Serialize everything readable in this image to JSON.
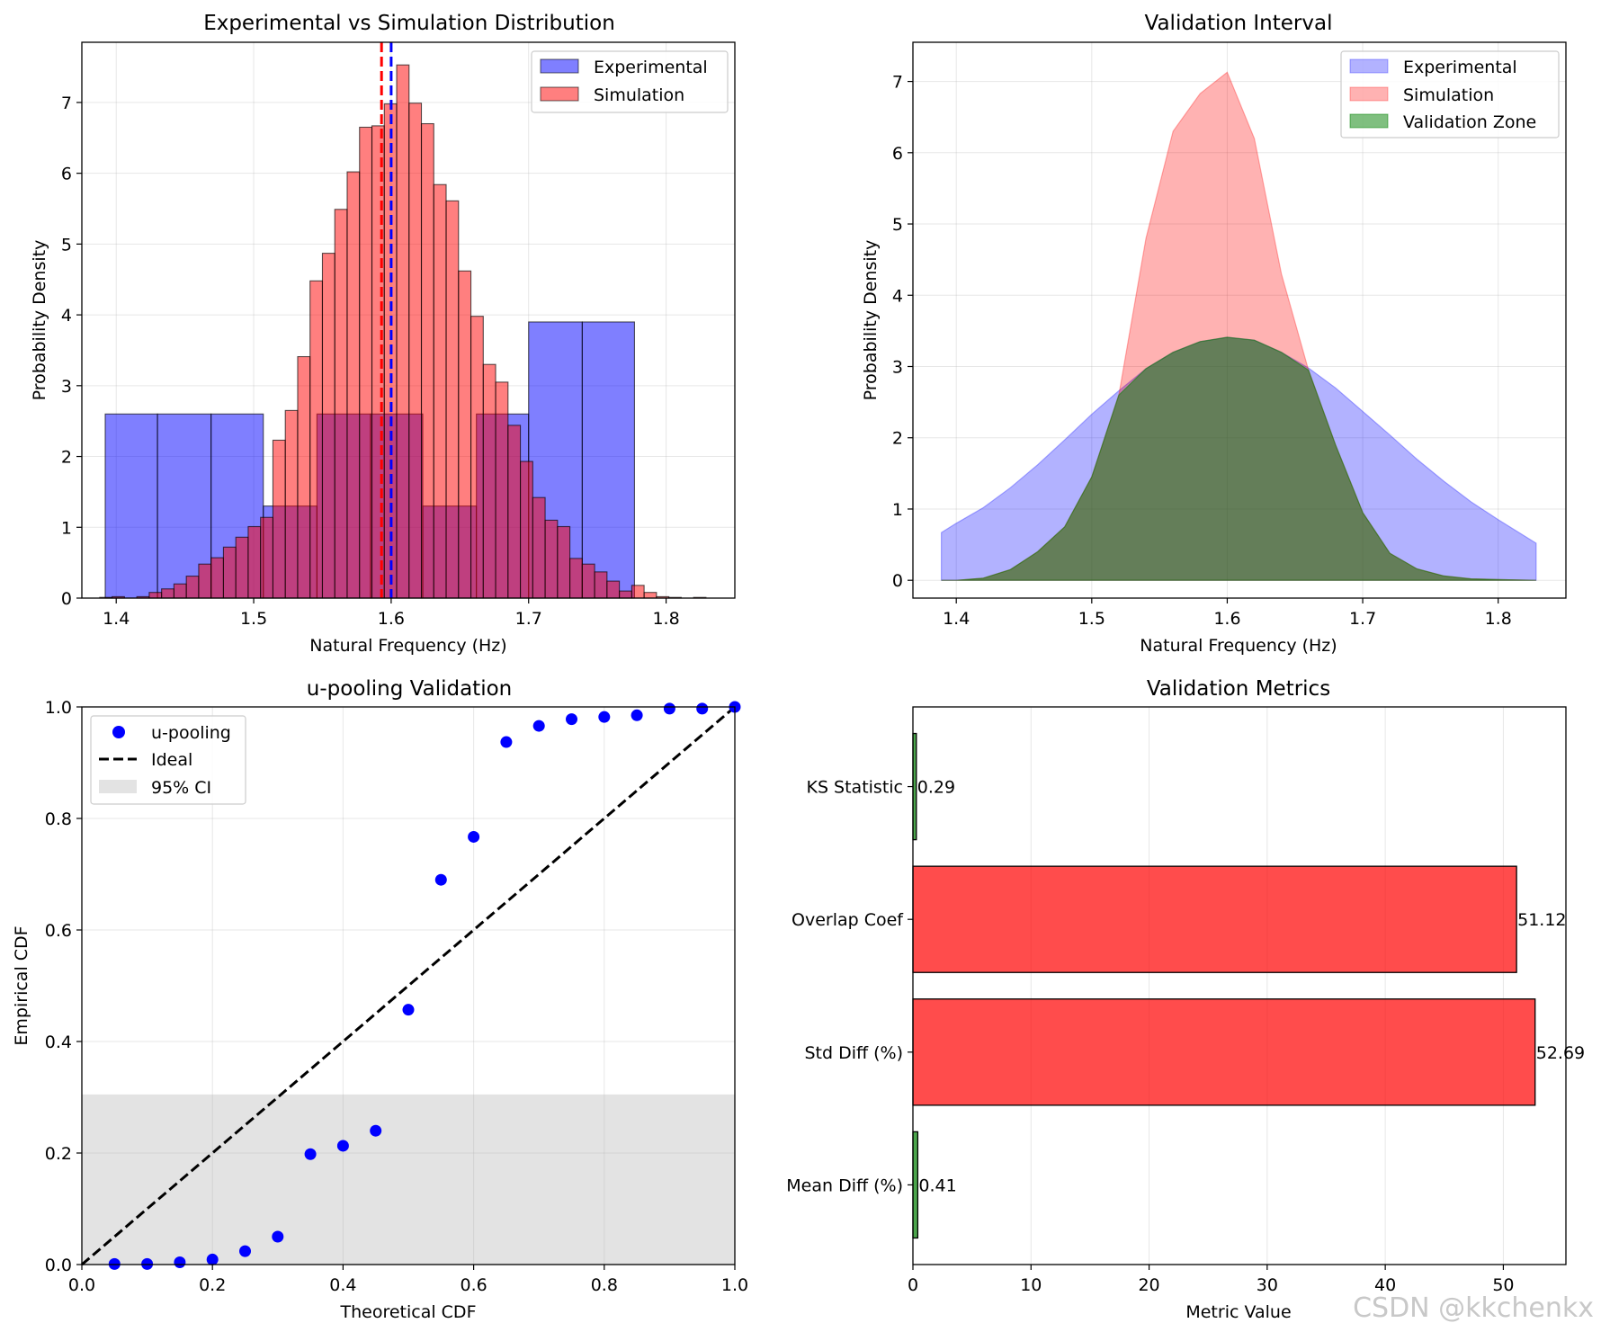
{
  "watermark": "CSDN @kkchenkx",
  "chart_data": [
    {
      "type": "bar",
      "subtype": "histogram",
      "title": "Experimental vs Simulation Distribution",
      "xlabel": "Natural Frequency (Hz)",
      "ylabel": "Probability Density",
      "xlim": [
        1.375,
        1.85
      ],
      "ylim": [
        0,
        7.85
      ],
      "xticks": [
        "1.4",
        "1.5",
        "1.6",
        "1.7",
        "1.8"
      ],
      "yticks": [
        "0",
        "1",
        "2",
        "3",
        "4",
        "5",
        "6",
        "7"
      ],
      "grid": true,
      "legend_position": "top-right",
      "series": [
        {
          "name": "Experimental",
          "color": "#0000ff",
          "bin_edges": [
            1.392,
            1.43,
            1.469,
            1.507,
            1.546,
            1.585,
            1.623,
            1.662,
            1.7,
            1.739,
            1.777
          ],
          "values": [
            2.6,
            2.6,
            2.6,
            1.3,
            2.6,
            2.6,
            1.3,
            2.6,
            3.9,
            3.9
          ]
        },
        {
          "name": "Simulation",
          "color": "#ff0000",
          "bin_edges": [
            1.388,
            1.397,
            1.406,
            1.415,
            1.424,
            1.433,
            1.442,
            1.451,
            1.46,
            1.469,
            1.478,
            1.487,
            1.496,
            1.505,
            1.514,
            1.523,
            1.532,
            1.541,
            1.55,
            1.559,
            1.568,
            1.577,
            1.586,
            1.595,
            1.604,
            1.613,
            1.622,
            1.631,
            1.64,
            1.649,
            1.658,
            1.667,
            1.676,
            1.685,
            1.694,
            1.703,
            1.712,
            1.721,
            1.73,
            1.739,
            1.748,
            1.757,
            1.766,
            1.775,
            1.784,
            1.793,
            1.802,
            1.811,
            1.82,
            1.829
          ],
          "values": [
            0.01,
            0.02,
            0.0,
            0.02,
            0.08,
            0.13,
            0.2,
            0.31,
            0.48,
            0.57,
            0.72,
            0.86,
            1.01,
            1.14,
            2.23,
            2.65,
            3.41,
            4.48,
            4.87,
            5.49,
            6.02,
            6.65,
            6.67,
            6.98,
            7.53,
            6.99,
            6.7,
            5.84,
            5.61,
            4.62,
            3.98,
            3.3,
            3.05,
            2.44,
            1.93,
            1.42,
            1.1,
            1.01,
            0.56,
            0.48,
            0.37,
            0.24,
            0.1,
            0.18,
            0.08,
            0.02,
            0.01,
            0.0,
            0.01
          ]
        }
      ],
      "vlines": [
        {
          "x": 1.593,
          "color": "#ff0000",
          "style": "dashed"
        },
        {
          "x": 1.6,
          "color": "#0000ff",
          "style": "dashed"
        }
      ]
    },
    {
      "type": "area",
      "title": "Validation Interval",
      "xlabel": "Natural Frequency (Hz)",
      "ylabel": "Probability Density",
      "xlim": [
        1.368,
        1.85
      ],
      "ylim": [
        -0.25,
        7.55
      ],
      "xticks": [
        "1.4",
        "1.5",
        "1.6",
        "1.7",
        "1.8"
      ],
      "yticks": [
        "0",
        "1",
        "2",
        "3",
        "4",
        "5",
        "6",
        "7"
      ],
      "grid": true,
      "legend_position": "top-right",
      "x": [
        1.389,
        1.4,
        1.42,
        1.44,
        1.46,
        1.48,
        1.5,
        1.52,
        1.54,
        1.56,
        1.58,
        1.6,
        1.62,
        1.64,
        1.66,
        1.68,
        1.7,
        1.72,
        1.74,
        1.76,
        1.78,
        1.8,
        1.828
      ],
      "series": [
        {
          "name": "Experimental",
          "color": "#0000ff",
          "values": [
            0.67,
            0.8,
            1.02,
            1.3,
            1.62,
            1.97,
            2.33,
            2.66,
            2.97,
            3.2,
            3.35,
            3.41,
            3.37,
            3.2,
            2.98,
            2.7,
            2.37,
            2.04,
            1.7,
            1.39,
            1.1,
            0.85,
            0.52
          ]
        },
        {
          "name": "Simulation",
          "color": "#ff0000",
          "values": [
            0.0,
            0.0,
            0.03,
            0.15,
            0.4,
            0.75,
            1.45,
            2.6,
            4.8,
            6.3,
            6.83,
            7.13,
            6.2,
            4.3,
            2.95,
            1.9,
            0.95,
            0.38,
            0.16,
            0.06,
            0.02,
            0.01,
            0.0
          ]
        },
        {
          "name": "Validation Zone",
          "color": "#008000",
          "values": [
            0.0,
            0.0,
            0.03,
            0.15,
            0.4,
            0.75,
            1.45,
            2.6,
            2.97,
            3.2,
            3.35,
            3.41,
            3.37,
            3.2,
            2.95,
            1.9,
            0.95,
            0.38,
            0.16,
            0.06,
            0.02,
            0.01,
            0.0
          ]
        }
      ]
    },
    {
      "type": "scatter",
      "title": "u-pooling Validation",
      "xlabel": "Theoretical CDF",
      "ylabel": "Empirical CDF",
      "xlim": [
        0,
        1
      ],
      "ylim": [
        0,
        1
      ],
      "xticks": [
        "0.0",
        "0.2",
        "0.4",
        "0.6",
        "0.8",
        "1.0"
      ],
      "yticks": [
        "0.0",
        "0.2",
        "0.4",
        "0.6",
        "0.8",
        "1.0"
      ],
      "grid": true,
      "legend_position": "top-left",
      "series": [
        {
          "name": "u-pooling",
          "color": "#0000ff",
          "x": [
            0.05,
            0.1,
            0.15,
            0.2,
            0.25,
            0.3,
            0.35,
            0.4,
            0.45,
            0.5,
            0.55,
            0.6,
            0.65,
            0.7,
            0.75,
            0.8,
            0.85,
            0.9,
            0.95,
            1.0
          ],
          "y": [
            0.001,
            0.001,
            0.004,
            0.009,
            0.024,
            0.05,
            0.198,
            0.213,
            0.24,
            0.457,
            0.69,
            0.767,
            0.937,
            0.966,
            0.978,
            0.982,
            0.985,
            0.997,
            0.997,
            1.0
          ]
        },
        {
          "name": "Ideal",
          "color": "#000000",
          "style": "dashed",
          "x": [
            0,
            1
          ],
          "y": [
            0,
            1
          ]
        },
        {
          "name": "95% CI",
          "color": "#808080",
          "band": [
            0,
            0.305
          ]
        }
      ]
    },
    {
      "type": "bar",
      "orientation": "horizontal",
      "title": "Validation Metrics",
      "xlabel": "Metric Value",
      "ylabel": "",
      "xlim": [
        0,
        55.3
      ],
      "xticks": [
        "0",
        "10",
        "20",
        "30",
        "40",
        "50"
      ],
      "grid": true,
      "categories": [
        "Mean Diff (%)",
        "Std Diff (%)",
        "Overlap Coef",
        "KS Statistic"
      ],
      "values": [
        0.41,
        52.69,
        51.12,
        0.29
      ],
      "value_labels": [
        "0.41",
        "52.69",
        "51.12",
        "0.29"
      ],
      "colors": [
        "#008000",
        "#ff0000",
        "#ff0000",
        "#008000"
      ]
    }
  ]
}
